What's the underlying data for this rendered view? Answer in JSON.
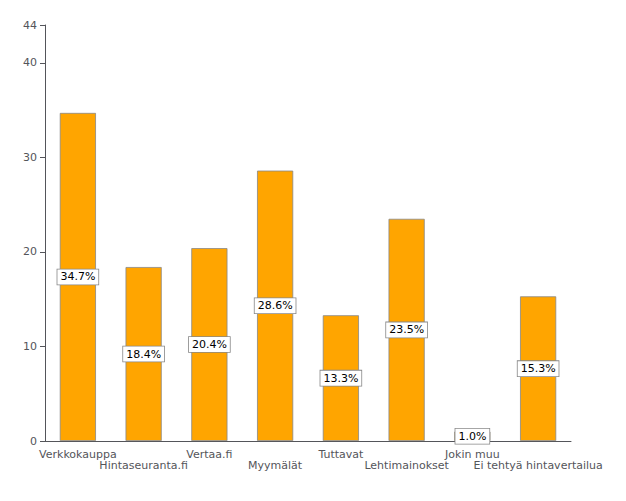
{
  "chart_data": {
    "type": "bar",
    "categories": [
      "Verkkokauppa",
      "Hintaseuranta.fi",
      "Vertaa.fi",
      "Myymälät",
      "Tuttavat",
      "Lehtimainokset",
      "Jokin muu",
      "Ei tehtyä hintavertailua"
    ],
    "values": [
      34.7,
      18.4,
      20.4,
      28.6,
      13.3,
      23.5,
      1.0,
      15.3
    ],
    "value_labels": [
      "34.7%",
      "18.4%",
      "20.4%",
      "28.6%",
      "13.3%",
      "23.5%",
      "1.0%",
      "15.3%"
    ],
    "data_labels": true,
    "color": "#FFA500",
    "ylim": [
      0,
      44
    ],
    "yticks": [
      0,
      10,
      20,
      30,
      40
    ],
    "grid": false
  }
}
